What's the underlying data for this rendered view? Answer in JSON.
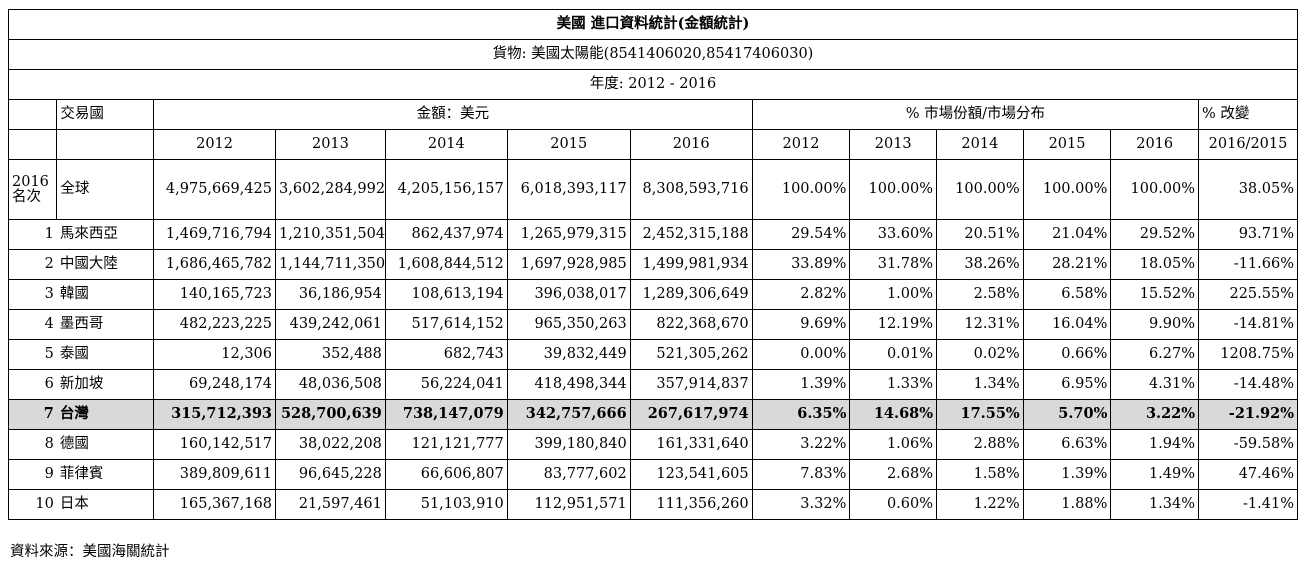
{
  "title": "美國  進口資料統計(金額統計)",
  "goods": "貨物:  美國太陽能(8541406020,85417406030)",
  "period": "年度: 2012 - 2016",
  "headers": {
    "country": "交易國",
    "amount": "金額：美元",
    "share": "%  市場份額/市場分布",
    "change": "% 改變",
    "rank_line1": "2016",
    "rank_line2": "名次",
    "years": [
      "2012",
      "2013",
      "2014",
      "2015",
      "2016"
    ],
    "change_period": "2016/2015"
  },
  "world": {
    "country": "全球",
    "amounts": [
      "4,975,669,425",
      "3,602,284,992",
      "4,205,156,157",
      "6,018,393,117",
      "8,308,593,716"
    ],
    "shares": [
      "100.00%",
      "100.00%",
      "100.00%",
      "100.00%",
      "100.00%"
    ],
    "change": "38.05%"
  },
  "rows": [
    {
      "rank": "1",
      "country": "馬來西亞",
      "amounts": [
        "1,469,716,794",
        "1,210,351,504",
        "862,437,974",
        "1,265,979,315",
        "2,452,315,188"
      ],
      "shares": [
        "29.54%",
        "33.60%",
        "20.51%",
        "21.04%",
        "29.52%"
      ],
      "change": "93.71%"
    },
    {
      "rank": "2",
      "country": "中國大陸",
      "amounts": [
        "1,686,465,782",
        "1,144,711,350",
        "1,608,844,512",
        "1,697,928,985",
        "1,499,981,934"
      ],
      "shares": [
        "33.89%",
        "31.78%",
        "38.26%",
        "28.21%",
        "18.05%"
      ],
      "change": "-11.66%"
    },
    {
      "rank": "3",
      "country": "韓國",
      "amounts": [
        "140,165,723",
        "36,186,954",
        "108,613,194",
        "396,038,017",
        "1,289,306,649"
      ],
      "shares": [
        "2.82%",
        "1.00%",
        "2.58%",
        "6.58%",
        "15.52%"
      ],
      "change": "225.55%"
    },
    {
      "rank": "4",
      "country": "墨西哥",
      "amounts": [
        "482,223,225",
        "439,242,061",
        "517,614,152",
        "965,350,263",
        "822,368,670"
      ],
      "shares": [
        "9.69%",
        "12.19%",
        "12.31%",
        "16.04%",
        "9.90%"
      ],
      "change": "-14.81%"
    },
    {
      "rank": "5",
      "country": "泰國",
      "amounts": [
        "12,306",
        "352,488",
        "682,743",
        "39,832,449",
        "521,305,262"
      ],
      "shares": [
        "0.00%",
        "0.01%",
        "0.02%",
        "0.66%",
        "6.27%"
      ],
      "change": "1208.75%"
    },
    {
      "rank": "6",
      "country": "新加坡",
      "amounts": [
        "69,248,174",
        "48,036,508",
        "56,224,041",
        "418,498,344",
        "357,914,837"
      ],
      "shares": [
        "1.39%",
        "1.33%",
        "1.34%",
        "6.95%",
        "4.31%"
      ],
      "change": "-14.48%"
    },
    {
      "rank": "7",
      "country": "台灣",
      "highlight": true,
      "amounts": [
        "315,712,393",
        "528,700,639",
        "738,147,079",
        "342,757,666",
        "267,617,974"
      ],
      "shares": [
        "6.35%",
        "14.68%",
        "17.55%",
        "5.70%",
        "3.22%"
      ],
      "change": "-21.92%"
    },
    {
      "rank": "8",
      "country": "德國",
      "amounts": [
        "160,142,517",
        "38,022,208",
        "121,121,777",
        "399,180,840",
        "161,331,640"
      ],
      "shares": [
        "3.22%",
        "1.06%",
        "2.88%",
        "6.63%",
        "1.94%"
      ],
      "change": "-59.58%"
    },
    {
      "rank": "9",
      "country": "菲律賓",
      "amounts": [
        "389,809,611",
        "96,645,228",
        "66,606,807",
        "83,777,602",
        "123,541,605"
      ],
      "shares": [
        "7.83%",
        "2.68%",
        "1.58%",
        "1.39%",
        "1.49%"
      ],
      "change": "47.46%"
    },
    {
      "rank": "10",
      "country": "日本",
      "amounts": [
        "165,367,168",
        "21,597,461",
        "51,103,910",
        "112,951,571",
        "111,356,260"
      ],
      "shares": [
        "3.32%",
        "0.60%",
        "1.22%",
        "1.88%",
        "1.34%"
      ],
      "change": "-1.41%"
    }
  ],
  "colors": {
    "highlight_row": "#d9d9d9",
    "border": "#000000"
  },
  "source": "資料來源：美國海關統計"
}
